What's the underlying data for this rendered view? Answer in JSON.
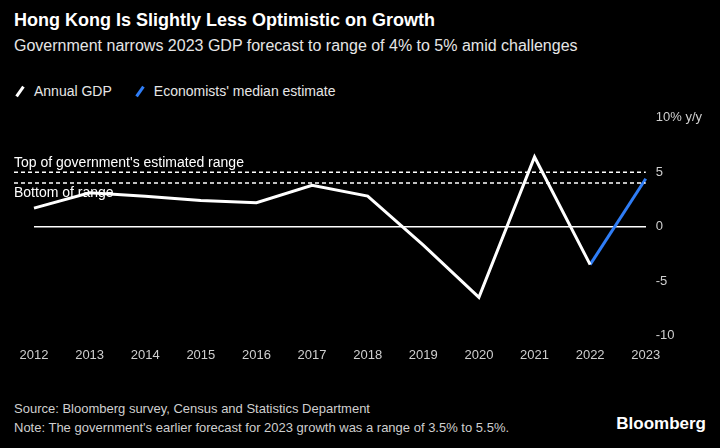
{
  "chart_data": {
    "type": "line",
    "title": "Hong Kong Is Slightly Less Optimistic on Growth",
    "subtitle": "Government narrows 2023 GDP forecast to range of 4% to 5% amid challenges",
    "categories": [
      "2012",
      "2013",
      "2014",
      "2015",
      "2016",
      "2017",
      "2018",
      "2019",
      "2020",
      "2021",
      "2022",
      "2023"
    ],
    "series": [
      {
        "name": "Annual GDP",
        "color": "#ffffff",
        "values": [
          1.7,
          3.1,
          2.8,
          2.4,
          2.2,
          3.8,
          2.8,
          -1.7,
          -6.5,
          6.4,
          -3.5,
          null
        ]
      },
      {
        "name": "Economists' median estimate",
        "color": "#2f7df6",
        "values": [
          null,
          null,
          null,
          null,
          null,
          null,
          null,
          null,
          null,
          null,
          -3.5,
          4.4
        ]
      }
    ],
    "ylim": [
      -10,
      10
    ],
    "yticks": [
      -10,
      -5,
      0,
      5,
      {
        "value": 10,
        "label": "10% y/y"
      }
    ],
    "grid": false,
    "legend": "top-left",
    "annotations": [
      {
        "value": 5,
        "label": "Top of government's estimated range"
      },
      {
        "value": 4,
        "label": "Bottom of range"
      }
    ],
    "source": "Source: Bloomberg survey, Census and Statistics Department",
    "note": "Note: The government's earlier forecast for 2023 growth was a range of 3.5% to 5.5%.",
    "credit": "Bloomberg"
  }
}
